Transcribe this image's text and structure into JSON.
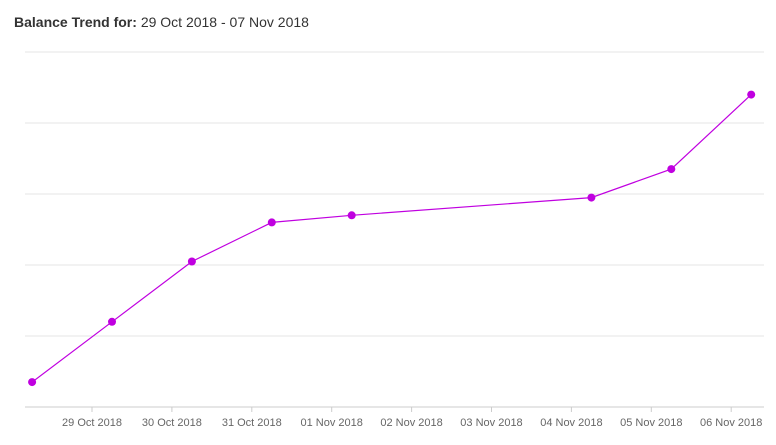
{
  "header": {
    "label": "Balance Trend for:",
    "range": "29 Oct 2018 - 07 Nov 2018"
  },
  "colors": {
    "series": "#c000e0",
    "grid": "#e6e6e6",
    "axis": "#cccccc",
    "tick_text": "#666666"
  },
  "chart_data": {
    "type": "line",
    "title": "Balance Trend for: 29 Oct 2018 - 07 Nov 2018",
    "xlabel": "",
    "ylabel": "",
    "x_tick_labels": [
      "29 Oct 2018",
      "30 Oct 2018",
      "31 Oct 2018",
      "01 Nov 2018",
      "02 Nov 2018",
      "03 Nov 2018",
      "04 Nov 2018",
      "05 Nov 2018",
      "06 Nov 2018"
    ],
    "y_tick_labels": [],
    "ylim": [
      0,
      100
    ],
    "grid": true,
    "legend": "none",
    "series": [
      {
        "points": [
          {
            "x": "2018-10-28",
            "y": 7
          },
          {
            "x": "2018-10-29",
            "y": 24
          },
          {
            "x": "2018-10-30",
            "y": 41
          },
          {
            "x": "2018-10-31",
            "y": 52
          },
          {
            "x": "2018-11-01",
            "y": 54
          },
          {
            "x": "2018-11-04",
            "y": 59
          },
          {
            "x": "2018-11-05",
            "y": 67
          },
          {
            "x": "2018-11-06",
            "y": 88
          }
        ]
      }
    ]
  }
}
